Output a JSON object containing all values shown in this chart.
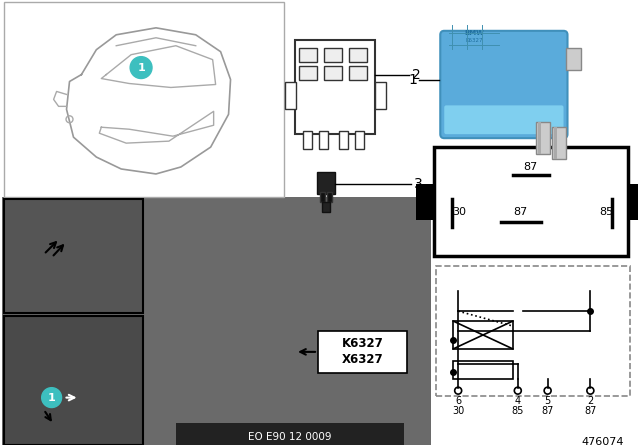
{
  "bg_color": "#f0f0f0",
  "white": "#ffffff",
  "black": "#000000",
  "gray_photo": "#787878",
  "gray_dark": "#555555",
  "gray_light": "#aaaaaa",
  "teal": "#3dbfbf",
  "relay_blue": "#5aabdb",
  "relay_blue_dark": "#4090bb",
  "silver": "#c0c0c0",
  "k6327": "K6327",
  "x6327": "X6327",
  "eo_label": "EO E90 12 0009",
  "ref_label": "476074",
  "pin_top": "87",
  "pin_30": "30",
  "pin_87m": "87",
  "pin_85": "85",
  "circ_pins": [
    "6",
    "4",
    "5",
    "2"
  ],
  "circ_pins2": [
    "30",
    "85",
    "87",
    "87"
  ]
}
